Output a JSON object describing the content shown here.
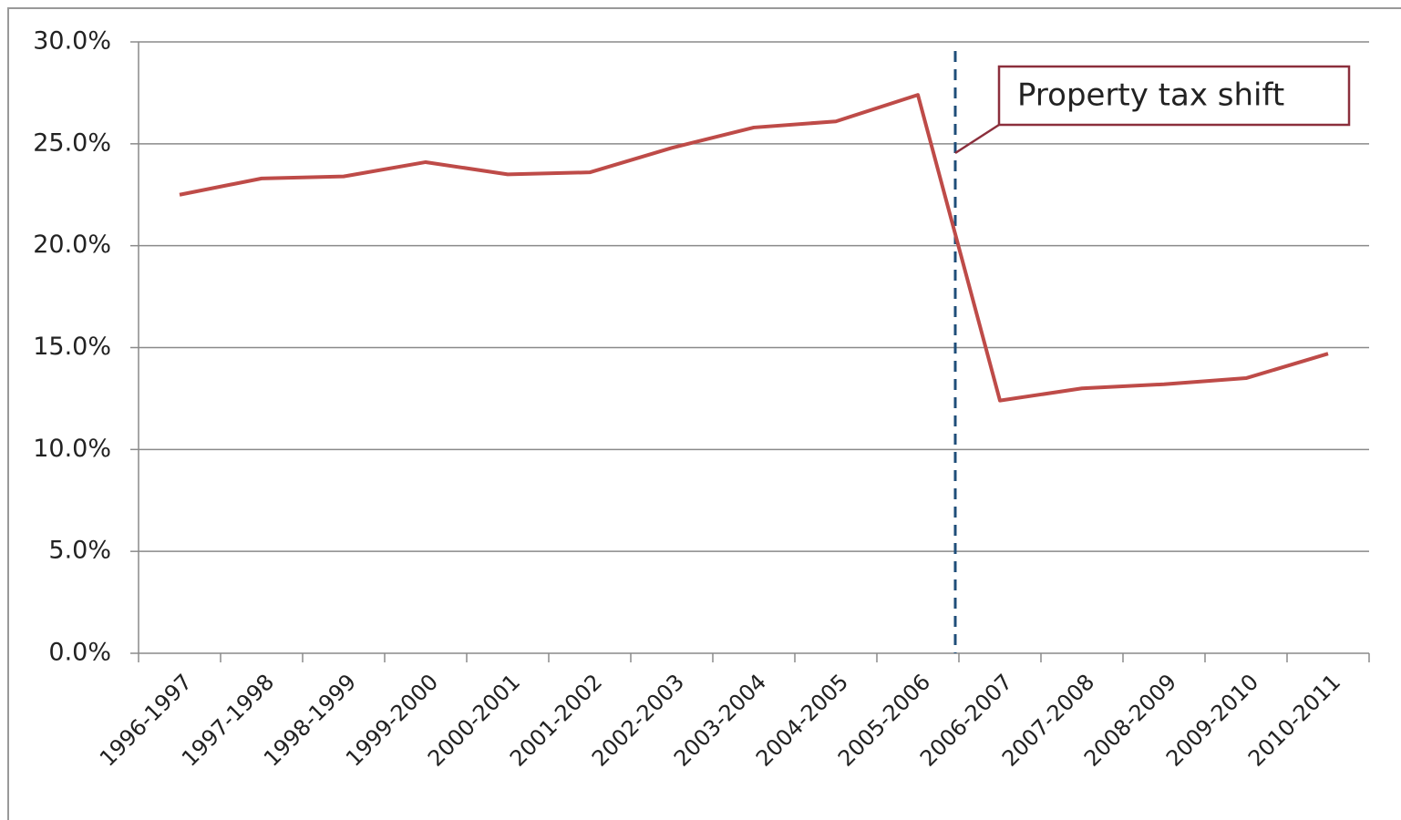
{
  "chart_data": {
    "type": "line",
    "categories": [
      "1996-1997",
      "1997-1998",
      "1998-1999",
      "1999-2000",
      "2000-2001",
      "2001-2002",
      "2002-2003",
      "2003-2004",
      "2004-2005",
      "2005-2006",
      "2006-2007",
      "2007-2008",
      "2008-2009",
      "2009-2010",
      "2010-2011"
    ],
    "values": [
      22.5,
      23.3,
      23.4,
      24.1,
      23.5,
      23.6,
      24.8,
      25.8,
      26.1,
      27.4,
      12.4,
      13.0,
      13.2,
      13.5,
      14.7
    ],
    "color": "#be4b48",
    "ylim": [
      0,
      30
    ],
    "yticks": [
      {
        "value": 0,
        "label": "0.0%"
      },
      {
        "value": 5,
        "label": "5.0%"
      },
      {
        "value": 10,
        "label": "10.0%"
      },
      {
        "value": 15,
        "label": "15.0%"
      },
      {
        "value": 20,
        "label": "20.0%"
      },
      {
        "value": 25,
        "label": "25.0%"
      },
      {
        "value": 30,
        "label": "30.0%"
      }
    ],
    "grid": true,
    "annotation": "Property tax shift"
  }
}
